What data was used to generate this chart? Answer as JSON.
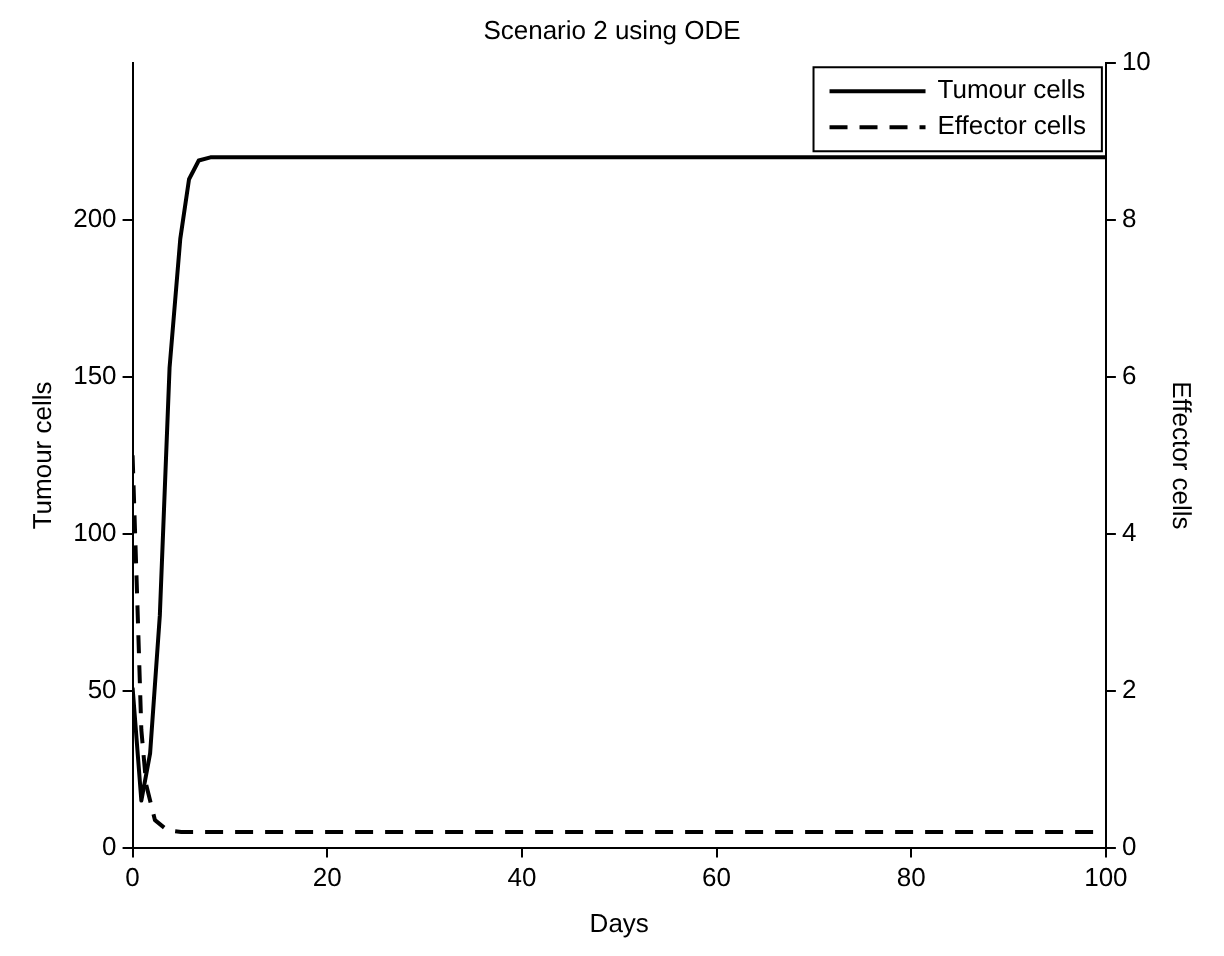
{
  "chart_data": {
    "type": "line",
    "title": "Scenario 2 using ODE",
    "xlabel": "Days",
    "ylabel": "Tumour cells",
    "y2label": "Effector cells",
    "series": [
      {
        "name": "Tumour cells",
        "color": "#000000",
        "line_style": "solid",
        "x": [
          0,
          0.9,
          1.8,
          2.8,
          3.8,
          4.9,
          5.8,
          6.8,
          8,
          10,
          20,
          40,
          60,
          80,
          100
        ],
        "values": [
          51,
          15,
          30,
          74,
          153,
          194,
          213,
          219,
          220,
          220,
          220,
          220,
          220,
          220,
          220
        ]
      },
      {
        "name": "Effector cells",
        "color": "#000000",
        "line_style": "dashed",
        "axis": "y2",
        "x": [
          0,
          0.47,
          0.9,
          1.4,
          2.3,
          3.6,
          5,
          10,
          20,
          40,
          60,
          80,
          100
        ],
        "values": [
          5,
          3.2,
          1.5,
          0.8,
          0.35,
          0.22,
          0.2,
          0.2,
          0.2,
          0.2,
          0.2,
          0.2,
          0.2
        ]
      }
    ],
    "xlim": [
      0,
      100
    ],
    "xticks": [
      0,
      20,
      40,
      60,
      80,
      100
    ],
    "ylim": [
      0,
      250
    ],
    "yticks": [
      0,
      50,
      100,
      150,
      200
    ],
    "y2lim": [
      0,
      10
    ],
    "y2ticks": [
      0,
      2,
      4,
      6,
      8,
      10
    ],
    "grid": false,
    "legend": "top right",
    "marker": "none"
  }
}
